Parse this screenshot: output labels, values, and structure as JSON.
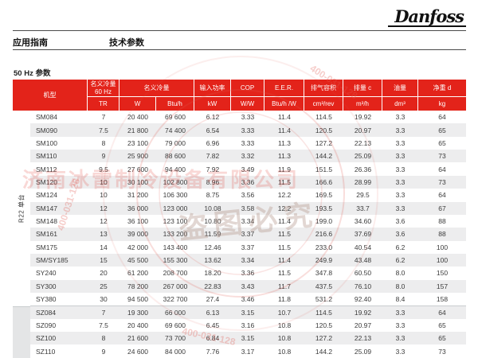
{
  "header": {
    "logo": "Danfoss",
    "section": "应用指南",
    "title": "技术参数"
  },
  "caption": "50 Hz 参数",
  "table": {
    "head": {
      "model": "机型",
      "cap60": "名义冷量\n60 Hz",
      "cap60_unit": "TR",
      "capacity": "名义冷量",
      "capacity_unit_w": "W",
      "capacity_unit_btu": "Btu/h",
      "power": "输入功率",
      "power_unit": "kW",
      "cop": "COP",
      "cop_unit": "W/W",
      "eer": "E.E.R.",
      "eer_unit": "Btu/h /W",
      "swept_volume": "排气容积",
      "swept_volume_unit": "cm³/rev",
      "displacement": "排量 c",
      "displacement_unit": "m³/h",
      "oil_charge": "油量",
      "oil_charge_unit": "dm³",
      "net_weight": "净重 d",
      "net_weight_unit": "kg"
    },
    "groups": [
      {
        "label": "R22 单台",
        "rows": [
          [
            "SM084",
            "7",
            "20 400",
            "69 600",
            "6.12",
            "3.33",
            "11.4",
            "114.5",
            "19.92",
            "3.3",
            "64"
          ],
          [
            "SM090",
            "7.5",
            "21 800",
            "74 400",
            "6.54",
            "3.33",
            "11.4",
            "120.5",
            "20.97",
            "3.3",
            "65"
          ],
          [
            "SM100",
            "8",
            "23 100",
            "79 000",
            "6.96",
            "3.33",
            "11.3",
            "127.2",
            "22.13",
            "3.3",
            "65"
          ],
          [
            "SM110",
            "9",
            "25 900",
            "88 600",
            "7.82",
            "3.32",
            "11.3",
            "144.2",
            "25.09",
            "3.3",
            "73"
          ],
          [
            "SM112",
            "9.5",
            "27 600",
            "94 400",
            "7.92",
            "3.49",
            "11.9",
            "151.5",
            "26.36",
            "3.3",
            "64"
          ],
          [
            "SM120",
            "10",
            "30 100",
            "102 800",
            "8.96",
            "3.36",
            "11.5",
            "166.6",
            "28.99",
            "3.3",
            "73"
          ],
          [
            "SM124",
            "10",
            "31 200",
            "106 300",
            "8.75",
            "3.56",
            "12.2",
            "169.5",
            "29.5",
            "3.3",
            "64"
          ],
          [
            "SM147",
            "12",
            "36 000",
            "123 000",
            "10.08",
            "3.58",
            "12.2",
            "193.5",
            "33.7",
            "3.3",
            "67"
          ],
          [
            "SM148",
            "12",
            "36 100",
            "123 100",
            "10.80",
            "3.34",
            "11.4",
            "199.0",
            "34.60",
            "3.6",
            "88"
          ],
          [
            "SM161",
            "13",
            "39 000",
            "133 200",
            "11.59",
            "3.37",
            "11.5",
            "216.6",
            "37.69",
            "3.6",
            "88"
          ],
          [
            "SM175",
            "14",
            "42 000",
            "143 400",
            "12.46",
            "3.37",
            "11.5",
            "233.0",
            "40.54",
            "6.2",
            "100"
          ],
          [
            "SM/SY185",
            "15",
            "45 500",
            "155 300",
            "13.62",
            "3.34",
            "11.4",
            "249.9",
            "43.48",
            "6.2",
            "100"
          ],
          [
            "SY240",
            "20",
            "61 200",
            "208 700",
            "18.20",
            "3.36",
            "11.5",
            "347.8",
            "60.50",
            "8.0",
            "150"
          ],
          [
            "SY300",
            "25",
            "78 200",
            "267 000",
            "22.83",
            "3.43",
            "11.7",
            "437.5",
            "76.10",
            "8.0",
            "157"
          ],
          [
            "SY380",
            "30",
            "94 500",
            "322 700",
            "27.4",
            "3.46",
            "11.8",
            "531.2",
            "92.40",
            "8.4",
            "158"
          ]
        ]
      },
      {
        "label": "",
        "rows": [
          [
            "SZ084",
            "7",
            "19 300",
            "66 000",
            "6.13",
            "3.15",
            "10.7",
            "114.5",
            "19.92",
            "3.3",
            "64"
          ],
          [
            "SZ090",
            "7.5",
            "20 400",
            "69 600",
            "6.45",
            "3.16",
            "10.8",
            "120.5",
            "20.97",
            "3.3",
            "65"
          ],
          [
            "SZ100",
            "8",
            "21 600",
            "73 700",
            "6.84",
            "3.15",
            "10.8",
            "127.2",
            "22.13",
            "3.3",
            "65"
          ],
          [
            "SZ110",
            "9",
            "24 600",
            "84 000",
            "7.76",
            "3.17",
            "10.8",
            "144.2",
            "25.09",
            "3.3",
            "73"
          ]
        ]
      }
    ]
  },
  "watermark": {
    "company": "济南冰雷制冷设备有限公司",
    "stamp_text": "盗图必究",
    "phone_fragment": "400-031-128"
  }
}
